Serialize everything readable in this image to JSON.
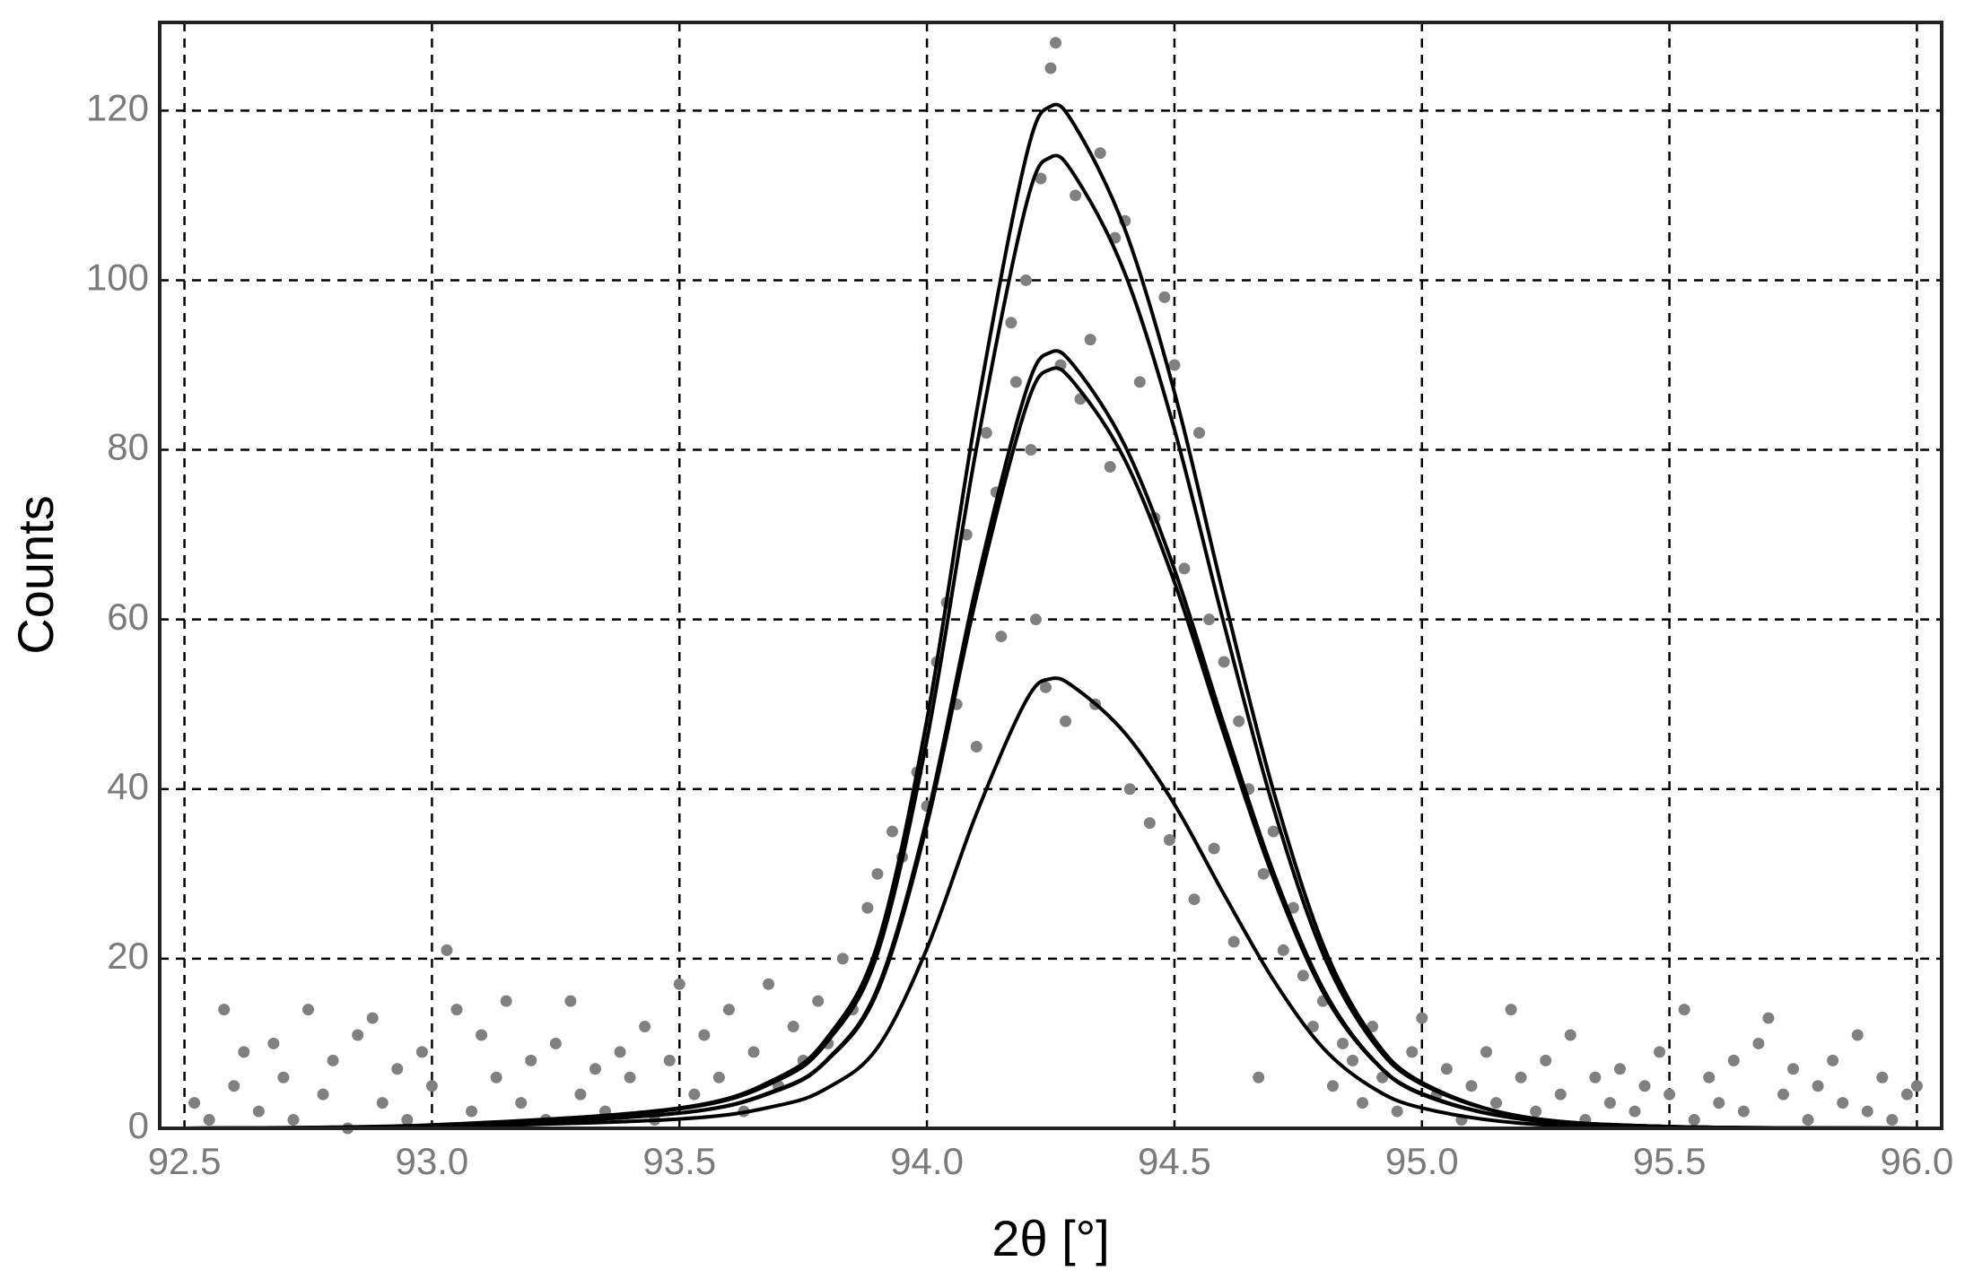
{
  "chart_data": {
    "type": "scatter",
    "xlabel": "2θ [°]",
    "ylabel": "Counts",
    "xlim": [
      92.45,
      96.05
    ],
    "ylim": [
      0,
      130.4
    ],
    "xticks": [
      92.5,
      {
        "value": 93,
        "label": "93.0"
      },
      93.5,
      {
        "value": 94,
        "label": "94.0"
      },
      94.5,
      {
        "value": 95,
        "label": "95.0"
      },
      95.5,
      {
        "value": 96,
        "label": "96.0"
      }
    ],
    "yticks": [
      0,
      20,
      40,
      60,
      80,
      100,
      120
    ],
    "grid": true,
    "points": {
      "color": "#808080",
      "x": [
        92.52,
        92.55,
        92.58,
        92.6,
        92.62,
        92.65,
        92.68,
        92.7,
        92.72,
        92.75,
        92.78,
        92.8,
        92.83,
        92.85,
        92.88,
        92.9,
        92.93,
        92.95,
        92.98,
        93.0,
        93.03,
        93.05,
        93.08,
        93.1,
        93.13,
        93.15,
        93.18,
        93.2,
        93.23,
        93.25,
        93.28,
        93.3,
        93.33,
        93.35,
        93.38,
        93.4,
        93.43,
        93.45,
        93.48,
        93.5,
        93.53,
        93.55,
        93.58,
        93.6,
        93.63,
        93.65,
        93.68,
        93.7,
        93.73,
        93.75,
        93.78,
        93.8,
        93.83,
        93.85,
        93.88,
        93.9,
        93.93,
        93.95,
        93.98,
        94.0,
        94.02,
        94.04,
        94.06,
        94.08,
        94.1,
        94.12,
        94.14,
        94.15,
        94.17,
        94.18,
        94.2,
        94.21,
        94.22,
        94.23,
        94.24,
        94.25,
        94.26,
        94.27,
        94.28,
        94.3,
        94.31,
        94.33,
        94.34,
        94.35,
        94.37,
        94.38,
        94.4,
        94.41,
        94.43,
        94.45,
        94.46,
        94.48,
        94.49,
        94.5,
        94.52,
        94.54,
        94.55,
        94.57,
        94.58,
        94.6,
        94.62,
        94.63,
        94.65,
        94.67,
        94.68,
        94.7,
        94.72,
        94.74,
        94.76,
        94.78,
        94.8,
        94.82,
        94.84,
        94.86,
        94.88,
        94.9,
        94.92,
        94.95,
        94.98,
        95.0,
        95.03,
        95.05,
        95.08,
        95.1,
        95.13,
        95.15,
        95.18,
        95.2,
        95.23,
        95.25,
        95.28,
        95.3,
        95.33,
        95.35,
        95.38,
        95.4,
        95.43,
        95.45,
        95.48,
        95.5,
        95.53,
        95.55,
        95.58,
        95.6,
        95.63,
        95.65,
        95.68,
        95.7,
        95.73,
        95.75,
        95.78,
        95.8,
        95.83,
        95.85,
        95.88,
        95.9,
        95.93,
        95.95,
        95.98,
        96.0
      ],
      "values": [
        3,
        1,
        14,
        5,
        9,
        2,
        10,
        6,
        1,
        14,
        4,
        8,
        0,
        11,
        13,
        3,
        7,
        1,
        9,
        5,
        21,
        14,
        2,
        11,
        6,
        15,
        3,
        8,
        1,
        10,
        15,
        4,
        7,
        2,
        9,
        6,
        12,
        1,
        8,
        17,
        4,
        11,
        6,
        14,
        2,
        9,
        17,
        5,
        12,
        8,
        15,
        10,
        20,
        14,
        26,
        30,
        35,
        32,
        42,
        38,
        55,
        62,
        50,
        70,
        45,
        82,
        75,
        58,
        95,
        88,
        100,
        80,
        60,
        112,
        52,
        125,
        128,
        90,
        48,
        110,
        86,
        93,
        50,
        115,
        78,
        105,
        107,
        40,
        88,
        36,
        72,
        98,
        34,
        90,
        66,
        27,
        82,
        60,
        33,
        55,
        22,
        48,
        40,
        6,
        30,
        35,
        21,
        26,
        18,
        12,
        15,
        5,
        10,
        8,
        3,
        12,
        6,
        2,
        9,
        13,
        4,
        7,
        1,
        5,
        9,
        3,
        14,
        6,
        2,
        8,
        4,
        11,
        1,
        6,
        3,
        7,
        2,
        5,
        9,
        4,
        14,
        1,
        6,
        3,
        8,
        2,
        10,
        13,
        4,
        7,
        1,
        5,
        8,
        3,
        11,
        2,
        6,
        1,
        4,
        5
      ]
    },
    "curves": {
      "color": "#000000",
      "x": [
        92.5,
        93.0,
        93.5,
        93.7,
        93.8,
        93.9,
        94.0,
        94.1,
        94.2,
        94.25,
        94.3,
        94.4,
        94.5,
        94.6,
        94.7,
        94.8,
        94.9,
        95.0,
        95.2,
        95.5,
        96.0
      ],
      "series": [
        {
          "values": [
            0,
            0.4,
            2.4,
            6.0,
            10.8,
            21.7,
            48.2,
            84.4,
            114.5,
            120.5,
            118.1,
            106.0,
            86.8,
            62.7,
            39.8,
            21.7,
            10.8,
            5.4,
            1.4,
            0.2,
            0
          ]
        },
        {
          "values": [
            0,
            0.3,
            2.3,
            5.7,
            10.3,
            20.6,
            45.8,
            80.2,
            108.8,
            114.5,
            112.2,
            100.8,
            82.4,
            59.5,
            37.8,
            20.6,
            10.3,
            5.2,
            1.4,
            0.2,
            0
          ]
        },
        {
          "values": [
            0,
            0.3,
            1.8,
            4.6,
            8.2,
            16.5,
            36.6,
            64.1,
            86.9,
            91.5,
            89.7,
            80.5,
            65.9,
            47.6,
            30.2,
            16.5,
            8.2,
            4.1,
            1.1,
            0.2,
            0
          ]
        },
        {
          "values": [
            0,
            0.3,
            1.8,
            4.5,
            8.1,
            16.1,
            35.8,
            62.7,
            85.0,
            89.5,
            87.7,
            78.8,
            64.4,
            46.5,
            29.5,
            16.1,
            8.1,
            4.0,
            1.1,
            0.2,
            0
          ]
        },
        {
          "values": [
            0,
            0.2,
            1.1,
            2.7,
            4.8,
            9.5,
            21.2,
            37.1,
            50.4,
            53,
            51.9,
            46.6,
            38.2,
            27.6,
            17.5,
            9.5,
            4.8,
            2.4,
            0.6,
            0.1,
            0
          ]
        }
      ]
    }
  }
}
